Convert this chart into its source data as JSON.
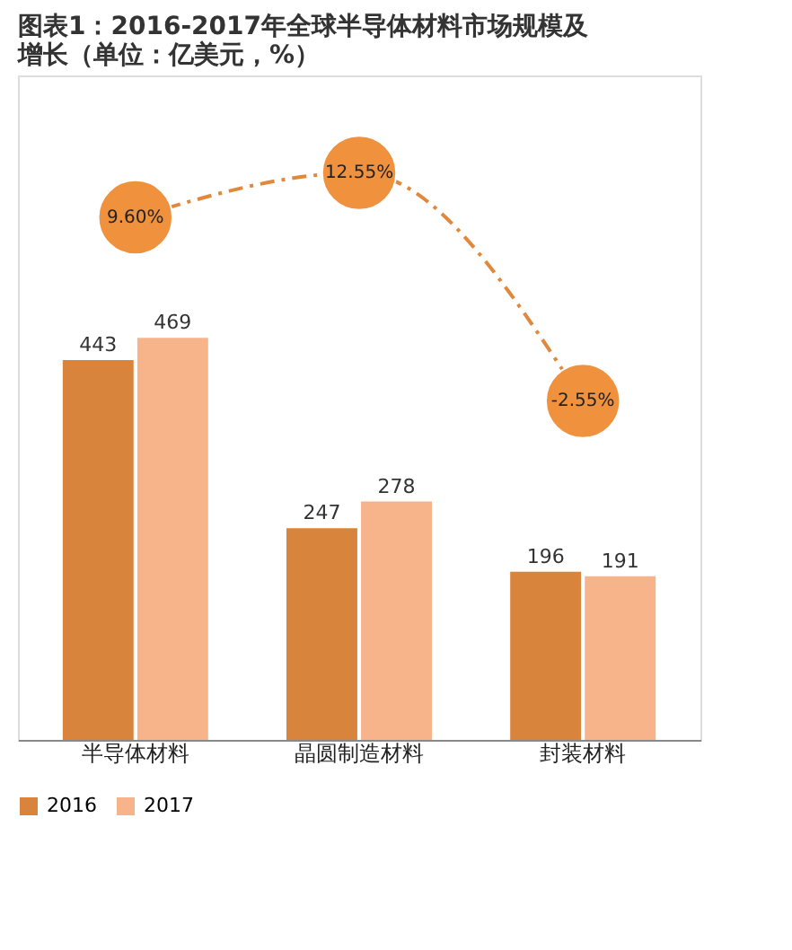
{
  "chart_data": {
    "type": "bar",
    "title": "图表1：2016-2017年全球半导体材料市场规模及增长（单位：亿美元，%）",
    "categories": [
      "半导体材料",
      "晶圆制造材料",
      "封装材料"
    ],
    "series": [
      {
        "name": "2016",
        "color": "#d9843d",
        "values": [
          443,
          247,
          196
        ]
      },
      {
        "name": "2017",
        "color": "#f7b48a",
        "values": [
          469,
          278,
          191
        ]
      },
      {
        "type": "line",
        "axis": "y2",
        "color": "#e0893c",
        "values": [
          9.6,
          12.55,
          -2.55
        ],
        "value_labels": [
          "9.60%",
          "12.55%",
          "-2.55%"
        ],
        "marker": "circle",
        "line_style": "dashed"
      }
    ],
    "data_labels": true,
    "ylim": [
      0,
      775
    ],
    "y2lim": [
      -25,
      19
    ],
    "tick_labels": "x",
    "grid": false,
    "legend": "bottom"
  }
}
